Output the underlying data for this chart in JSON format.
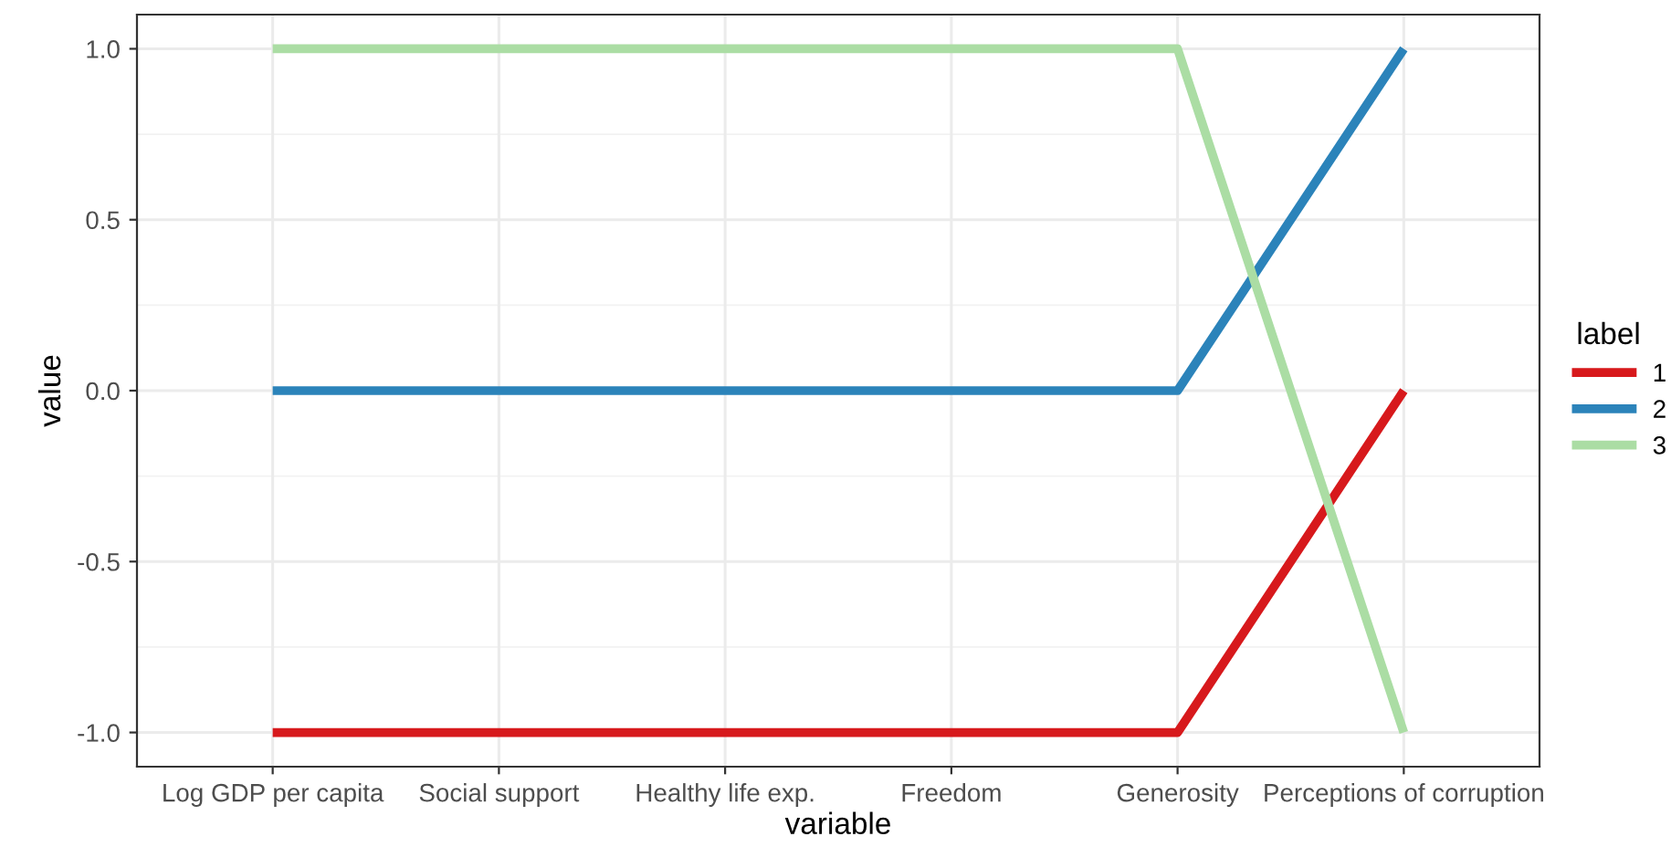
{
  "chart_data": {
    "type": "line",
    "xlabel": "variable",
    "ylabel": "value",
    "legend_title": "label",
    "categories": [
      "Log GDP per capita",
      "Social support",
      "Healthy life exp.",
      "Freedom",
      "Generosity",
      "Perceptions of corruption"
    ],
    "series": [
      {
        "name": "1",
        "color": "#d7191c",
        "values": [
          -1,
          -1,
          -1,
          -1,
          -1,
          0
        ]
      },
      {
        "name": "2",
        "color": "#2b83ba",
        "values": [
          0,
          0,
          0,
          0,
          0,
          1
        ]
      },
      {
        "name": "3",
        "color": "#abdda4",
        "values": [
          1,
          1,
          1,
          1,
          1,
          -1
        ]
      }
    ],
    "ylim": [
      -1.1,
      1.1
    ],
    "yticks": [
      {
        "value": -1,
        "label": "-1.0"
      },
      {
        "value": -0.5,
        "label": "-0.5"
      },
      {
        "value": 0,
        "label": "0.0"
      },
      {
        "value": 0.5,
        "label": "0.5"
      },
      {
        "value": 1,
        "label": "1.0"
      }
    ],
    "grid": true,
    "legend": "right",
    "marker": "none",
    "line_style": "solid"
  }
}
